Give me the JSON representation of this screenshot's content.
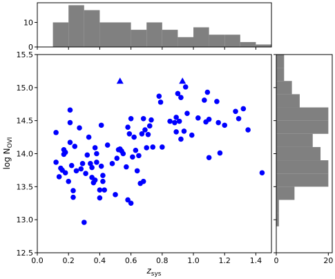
{
  "chart_data": [
    {
      "id": "main-scatter",
      "type": "scatter",
      "xlabel_main": "z",
      "xlabel_sub": "sys",
      "ylabel_main": "log N",
      "ylabel_sub": "OVI",
      "xlim": [
        0.0,
        1.5
      ],
      "ylim": [
        12.5,
        15.5
      ],
      "xticks": [
        "0.0",
        "0.2",
        "0.4",
        "0.6",
        "0.8",
        "1.0",
        "1.2",
        "1.4"
      ],
      "xtick_values": [
        0.0,
        0.2,
        0.4,
        0.6,
        0.8,
        1.0,
        1.2,
        1.4
      ],
      "yticks": [
        "12.5",
        "13.0",
        "13.5",
        "14.0",
        "14.5",
        "15.0",
        "15.5"
      ],
      "ytick_values": [
        12.5,
        13.0,
        13.5,
        14.0,
        14.5,
        15.0,
        15.5
      ],
      "grid": false,
      "series": [
        {
          "marker": "circle",
          "color": "#0000ff",
          "points": [
            [
              0.12,
              14.32
            ],
            [
              0.12,
              13.87
            ],
            [
              0.14,
              13.65
            ],
            [
              0.15,
              13.78
            ],
            [
              0.16,
              13.75
            ],
            [
              0.17,
              14.06
            ],
            [
              0.17,
              13.99
            ],
            [
              0.18,
              13.71
            ],
            [
              0.18,
              14.02
            ],
            [
              0.2,
              13.58
            ],
            [
              0.21,
              14.47
            ],
            [
              0.21,
              14.66
            ],
            [
              0.21,
              14.17
            ],
            [
              0.22,
              13.82
            ],
            [
              0.23,
              13.34
            ],
            [
              0.23,
              13.44
            ],
            [
              0.24,
              14.11
            ],
            [
              0.25,
              13.74
            ],
            [
              0.27,
              14.39
            ],
            [
              0.28,
              13.77
            ],
            [
              0.29,
              13.85
            ],
            [
              0.3,
              12.96
            ],
            [
              0.31,
              13.7
            ],
            [
              0.32,
              13.98
            ],
            [
              0.33,
              14.25
            ],
            [
              0.34,
              13.85
            ],
            [
              0.35,
              13.64
            ],
            [
              0.35,
              13.79
            ],
            [
              0.36,
              13.56
            ],
            [
              0.37,
              14.09
            ],
            [
              0.37,
              13.6
            ],
            [
              0.38,
              13.87
            ],
            [
              0.38,
              14.0
            ],
            [
              0.4,
              13.33
            ],
            [
              0.4,
              13.45
            ],
            [
              0.41,
              14.43
            ],
            [
              0.41,
              13.81
            ],
            [
              0.42,
              13.67
            ],
            [
              0.42,
              13.58
            ],
            [
              0.43,
              13.45
            ],
            [
              0.45,
              14.13
            ],
            [
              0.48,
              13.85
            ],
            [
              0.5,
              13.38
            ],
            [
              0.51,
              13.93
            ],
            [
              0.52,
              14.06
            ],
            [
              0.53,
              14.07
            ],
            [
              0.54,
              14.04
            ],
            [
              0.55,
              14.0
            ],
            [
              0.57,
              13.8
            ],
            [
              0.58,
              13.3
            ],
            [
              0.58,
              14.4
            ],
            [
              0.59,
              14.3
            ],
            [
              0.6,
              14.53
            ],
            [
              0.6,
              13.25
            ],
            [
              0.61,
              13.95
            ],
            [
              0.62,
              14.25
            ],
            [
              0.63,
              14.05
            ],
            [
              0.64,
              13.74
            ],
            [
              0.65,
              13.97
            ],
            [
              0.66,
              13.55
            ],
            [
              0.67,
              14.3
            ],
            [
              0.68,
              13.58
            ],
            [
              0.68,
              14.53
            ],
            [
              0.69,
              14.36
            ],
            [
              0.7,
              14.09
            ],
            [
              0.71,
              14.29
            ],
            [
              0.72,
              14.42
            ],
            [
              0.73,
              14.51
            ],
            [
              0.74,
              14.1
            ],
            [
              0.78,
              14.87
            ],
            [
              0.79,
              14.78
            ],
            [
              0.8,
              14.1
            ],
            [
              0.85,
              14.49
            ],
            [
              0.88,
              14.47
            ],
            [
              0.89,
              14.55
            ],
            [
              0.89,
              14.33
            ],
            [
              0.9,
              14.91
            ],
            [
              0.91,
              14.49
            ],
            [
              0.92,
              14.85
            ],
            [
              0.92,
              14.22
            ],
            [
              0.94,
              14.34
            ],
            [
              0.95,
              15.01
            ],
            [
              0.96,
              14.61
            ],
            [
              0.99,
              14.28
            ],
            [
              1.03,
              14.54
            ],
            [
              1.07,
              14.81
            ],
            [
              1.08,
              14.48
            ],
            [
              1.09,
              14.93
            ],
            [
              1.1,
              14.52
            ],
            [
              1.1,
              13.94
            ],
            [
              1.15,
              14.79
            ],
            [
              1.16,
              14.47
            ],
            [
              1.17,
              14.01
            ],
            [
              1.2,
              14.43
            ],
            [
              1.27,
              14.64
            ],
            [
              1.29,
              14.53
            ],
            [
              1.32,
              14.68
            ],
            [
              1.35,
              14.36
            ],
            [
              1.44,
              13.71
            ]
          ]
        },
        {
          "marker": "triangle",
          "color": "#0000ff",
          "points": [
            [
              0.53,
              15.1
            ],
            [
              0.93,
              15.1
            ]
          ]
        }
      ]
    },
    {
      "id": "top-histogram",
      "type": "bar",
      "orientation": "vertical",
      "color": "#808080",
      "bin_edges": [
        0.1,
        0.2,
        0.3,
        0.4,
        0.5,
        0.6,
        0.7,
        0.8,
        0.9,
        1.0,
        1.1,
        1.2,
        1.3,
        1.4,
        1.5
      ],
      "values": [
        10,
        17,
        15,
        10,
        10,
        7,
        10,
        7,
        4,
        8,
        5,
        5,
        2,
        1
      ],
      "yticks": [
        "0",
        "10"
      ],
      "ytick_values": [
        0,
        10
      ],
      "ylim": [
        0,
        18
      ]
    },
    {
      "id": "right-histogram",
      "type": "bar",
      "orientation": "horizontal",
      "color": "#808080",
      "bin_edges": [
        12.9,
        13.1,
        13.3,
        13.5,
        13.7,
        13.9,
        14.1,
        14.3,
        14.5,
        14.7,
        14.9,
        15.1,
        15.3,
        15.5
      ],
      "values": [
        1,
        1,
        7,
        20,
        20,
        17,
        14,
        20,
        20,
        9,
        6,
        3,
        3
      ],
      "xticks": [
        "0",
        "20"
      ],
      "xtick_values": [
        0,
        20
      ],
      "xlim": [
        0,
        21.5
      ]
    }
  ]
}
